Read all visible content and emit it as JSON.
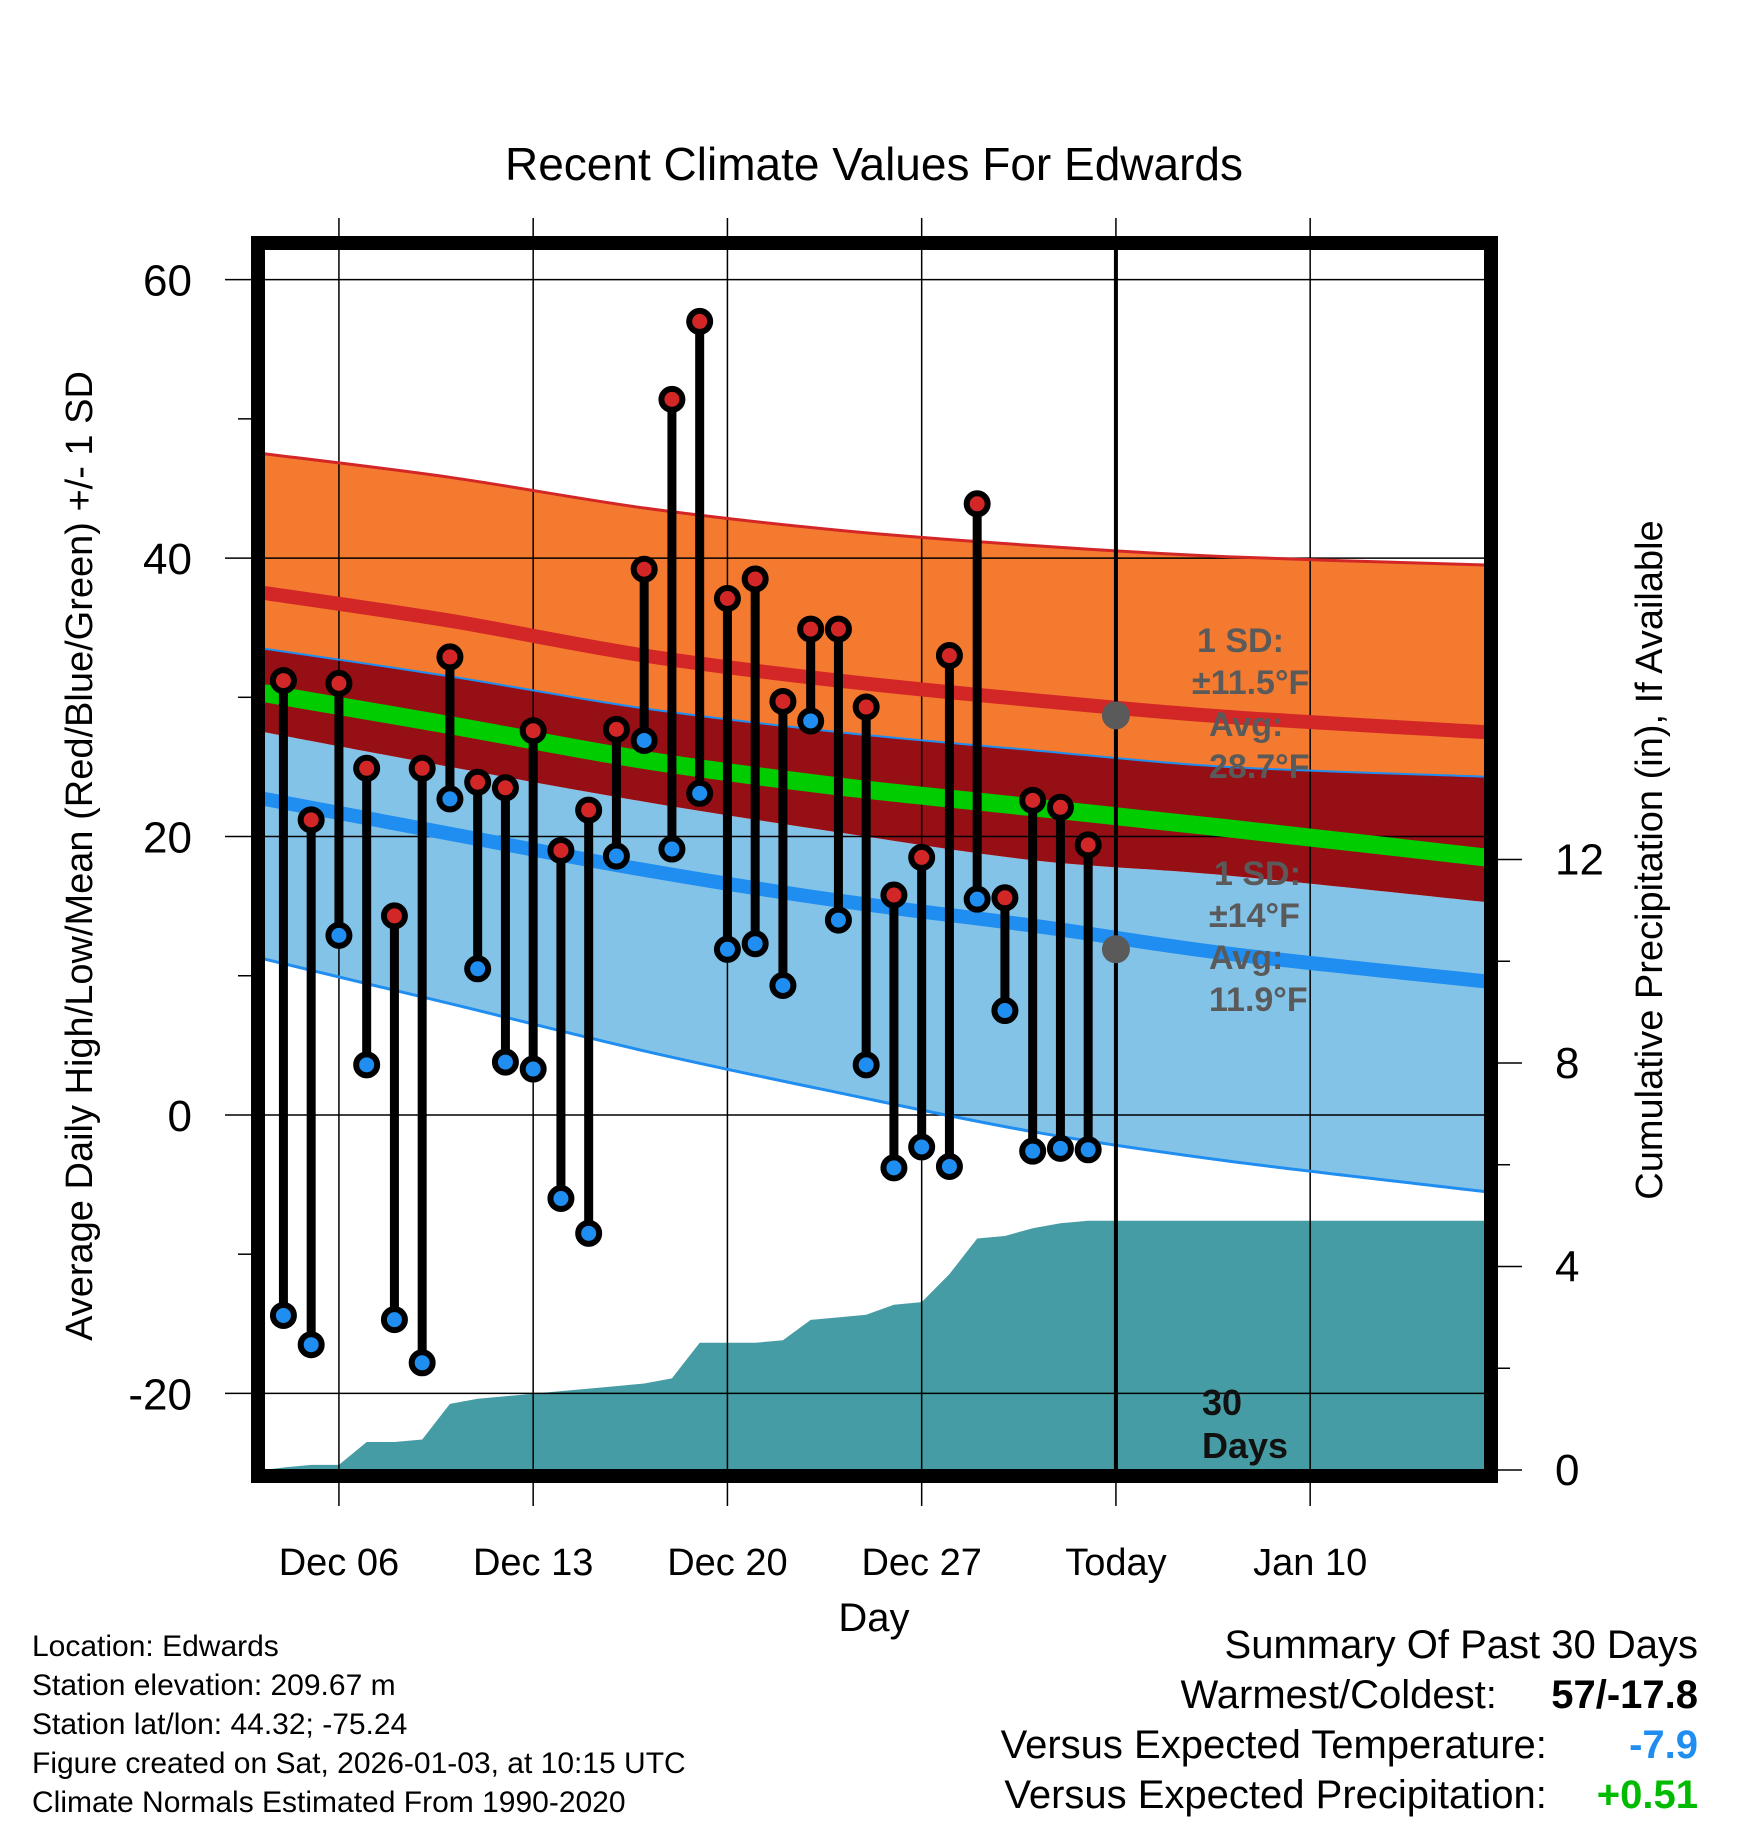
{
  "chart_data": {
    "type": "line",
    "title": "Recent Climate Values For Edwards",
    "xlabel": "Day",
    "ylabel": "Average Daily High/Low/Mean (Red/Blue/Green) +/- 1 SD",
    "y2label": "Cumulative Precipitation (in), If Available",
    "xlim": [
      -2.7,
      41.3
    ],
    "ylim": [
      -25.5,
      62.2
    ],
    "y2lim": [
      0,
      24
    ],
    "x_ticks": [
      {
        "x": 0,
        "label": "Dec 06"
      },
      {
        "x": 7,
        "label": "Dec 13"
      },
      {
        "x": 14,
        "label": "Dec 20"
      },
      {
        "x": 21,
        "label": "Dec 27"
      },
      {
        "x": 28,
        "label": "Today"
      },
      {
        "x": 35,
        "label": "Jan 10"
      }
    ],
    "y_ticks": [
      {
        "y": 60,
        "label": "60"
      },
      {
        "y": 40,
        "label": "40"
      },
      {
        "y": 20,
        "label": "20"
      },
      {
        "y": 0,
        "label": "0"
      },
      {
        "y": -20,
        "label": "-20"
      }
    ],
    "y2_ticks": [
      {
        "y": 0,
        "label": "0"
      },
      {
        "y": 4,
        "label": "4"
      },
      {
        "y": 8,
        "label": "8"
      },
      {
        "y": 12,
        "label": "12"
      }
    ],
    "normals": {
      "x": [
        -2.7,
        4,
        11,
        18,
        25,
        32,
        41.3
      ],
      "high_upper": [
        47.5,
        45.8,
        43.6,
        42.0,
        40.9,
        40.1,
        39.5
      ],
      "high_avg": [
        37.5,
        35.5,
        33.0,
        31.2,
        29.8,
        28.6,
        27.5
      ],
      "high_lower": [
        33.5,
        31.5,
        29.2,
        27.5,
        26.2,
        25.0,
        24.3
      ],
      "mean_avg": [
        30.3,
        28.0,
        25.5,
        23.6,
        22.1,
        20.6,
        18.5
      ],
      "low_upper": [
        27.5,
        25.0,
        22.5,
        20.3,
        18.3,
        17.2,
        15.3
      ],
      "low_avg": [
        22.7,
        20.2,
        17.6,
        15.4,
        13.6,
        11.6,
        9.6
      ],
      "low_lower": [
        11.2,
        8.0,
        4.6,
        1.6,
        -1.2,
        -3.3,
        -5.5
      ]
    },
    "precip_cumulative": {
      "x": [
        -2.7,
        -2,
        -1,
        0,
        1,
        2,
        3,
        4,
        5,
        6,
        7,
        8,
        9,
        10,
        11,
        12,
        13,
        14,
        15,
        16,
        17,
        18,
        19,
        20,
        21,
        22,
        23,
        24,
        25,
        26,
        27,
        28,
        41.3
      ],
      "values": [
        0,
        0.05,
        0.1,
        0.1,
        0.55,
        0.55,
        0.6,
        1.3,
        1.4,
        1.45,
        1.5,
        1.55,
        1.6,
        1.65,
        1.7,
        1.8,
        2.5,
        2.5,
        2.5,
        2.55,
        2.95,
        3.0,
        3.05,
        3.25,
        3.3,
        3.85,
        4.55,
        4.6,
        4.75,
        4.85,
        4.9,
        4.9,
        4.9
      ]
    },
    "series": [
      {
        "name": "High",
        "x": [
          -2,
          -1,
          0,
          1,
          2,
          3,
          4,
          5,
          6,
          7,
          8,
          9,
          10,
          11,
          12,
          13,
          14,
          15,
          16,
          17,
          18,
          19,
          20,
          21,
          22,
          23,
          24,
          25,
          26,
          27
        ],
        "values": [
          31.2,
          21.2,
          31.0,
          24.9,
          14.3,
          24.9,
          32.9,
          23.9,
          23.5,
          27.6,
          19.0,
          21.9,
          27.7,
          39.2,
          51.4,
          57.0,
          37.1,
          38.5,
          29.7,
          34.9,
          34.9,
          29.3,
          15.8,
          18.5,
          33.0,
          43.9,
          15.6,
          22.6,
          22.1,
          19.4
        ]
      },
      {
        "name": "Low",
        "x": [
          -2,
          -1,
          0,
          1,
          2,
          3,
          4,
          5,
          6,
          7,
          8,
          9,
          10,
          11,
          12,
          13,
          14,
          15,
          16,
          17,
          18,
          19,
          20,
          21,
          22,
          23,
          24,
          25,
          26,
          27
        ],
        "values": [
          -14.4,
          -16.5,
          12.9,
          3.6,
          -14.7,
          -17.8,
          22.7,
          10.5,
          3.8,
          3.3,
          -6.0,
          -8.5,
          18.6,
          26.9,
          19.1,
          23.1,
          11.9,
          12.3,
          9.3,
          28.3,
          14.0,
          3.6,
          -3.8,
          -2.3,
          -3.7,
          15.5,
          7.5,
          -2.6,
          -2.4,
          -2.5
        ]
      }
    ],
    "annotations": {
      "high_sd_line1": "1 SD:",
      "high_sd_line2": "±11.5°F",
      "high_avg_line1": "Avg:",
      "high_avg_line2": "28.7°F",
      "high_avg_value": 28.7,
      "low_sd_line1": "1 SD:",
      "low_sd_line2": "±14°F",
      "low_avg_line1": "Avg:",
      "low_avg_line2": "11.9°F",
      "low_avg_value": 11.9,
      "days_line1": "30",
      "days_line2": "Days"
    },
    "colors": {
      "high_band": "#f47a2f",
      "high_line": "#d32626",
      "overlap_band": "#960f14",
      "mean_line": "#00cc00",
      "low_band": "#84c3e8",
      "low_line": "#1f8ef0",
      "precip": "#469ca4",
      "high_marker": "#d32626",
      "low_marker": "#1f8ef0",
      "annotation": "#5a5a5a"
    }
  },
  "meta": {
    "location": "Location: Edwards",
    "elevation": "Station elevation: 209.67 m",
    "latlon": "Station lat/lon: 44.32; -75.24",
    "created": "Figure created on Sat, 2026-01-03, at 10:15 UTC",
    "normals": "Climate Normals Estimated From 1990-2020"
  },
  "summary": {
    "title": "Summary Of Past 30 Days",
    "warmest_label": "Warmest/Coldest:",
    "warmest_value": "57/-17.8",
    "temp_label": "Versus Expected Temperature:",
    "temp_value": "-7.9",
    "temp_color": "#1f8ef0",
    "precip_label": "Versus Expected Precipitation:",
    "precip_value": "+0.51",
    "precip_color": "#00bb00"
  }
}
